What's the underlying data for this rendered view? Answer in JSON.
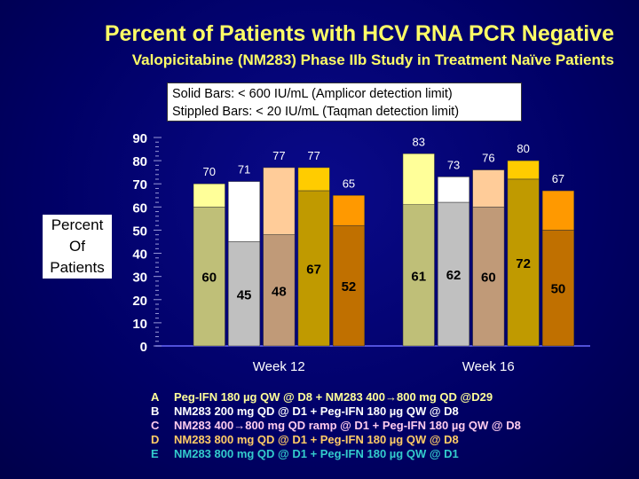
{
  "title": "Percent of Patients with HCV RNA PCR Negative",
  "subtitle": "Valopicitabine (NM283) Phase IIb Study in Treatment Naïve Patients",
  "note": {
    "line1": "Solid Bars:  < 600 IU/mL  (Amplicor detection limit)",
    "line2": "Stippled Bars:  < 20 IU/mL  (Taqman detection limit)"
  },
  "chart_data": {
    "type": "bar",
    "stacked": "overlay",
    "ylabel": "Percent Of Patients",
    "ylim": [
      0,
      90
    ],
    "yticks": [
      "0",
      "10",
      "20",
      "30",
      "40",
      "50",
      "60",
      "70",
      "80",
      "90"
    ],
    "categories": [
      "Week 12",
      "Week 16"
    ],
    "series": [
      {
        "name": "A",
        "solid": [
          60,
          61
        ],
        "stippled": [
          70,
          83
        ],
        "solid_color": "#bfbf78",
        "stippled_color": "#ffff99"
      },
      {
        "name": "B",
        "solid": [
          45,
          62
        ],
        "stippled": [
          71,
          73
        ],
        "solid_color": "#c0c0c0",
        "stippled_color": "#ffffff"
      },
      {
        "name": "C",
        "solid": [
          48,
          60
        ],
        "stippled": [
          77,
          76
        ],
        "solid_color": "#c09a78",
        "stippled_color": "#ffcc99"
      },
      {
        "name": "D",
        "solid": [
          67,
          72
        ],
        "stippled": [
          77,
          80
        ],
        "solid_color": "#c09a00",
        "stippled_color": "#ffcc00"
      },
      {
        "name": "E",
        "solid": [
          52,
          50
        ],
        "stippled": [
          65,
          67
        ],
        "solid_color": "#c07000",
        "stippled_color": "#ff9900"
      }
    ]
  },
  "legend": [
    {
      "letter": "A",
      "text": "Peg-IFN 180 µg QW @ D8 + NM283 400→800 mg QD @D29",
      "color": "#ffff99"
    },
    {
      "letter": "B",
      "text": "NM283 200 mg QD @ D1 + Peg-IFN 180 µg QW @ D8",
      "color": "#ffffff"
    },
    {
      "letter": "C",
      "text": "NM283 400→800 mg QD ramp @ D1 + Peg-IFN 180 µg QW @ D8",
      "color": "#ffccee"
    },
    {
      "letter": "D",
      "text": "NM283 800 mg QD @ D1 + Peg-IFN 180 µg QW @ D8",
      "color": "#ffcc66"
    },
    {
      "letter": "E",
      "text": "NM283 800 mg QD @ D1 + Peg-IFN 180 µg QW @ D1",
      "color": "#33cccc"
    }
  ]
}
